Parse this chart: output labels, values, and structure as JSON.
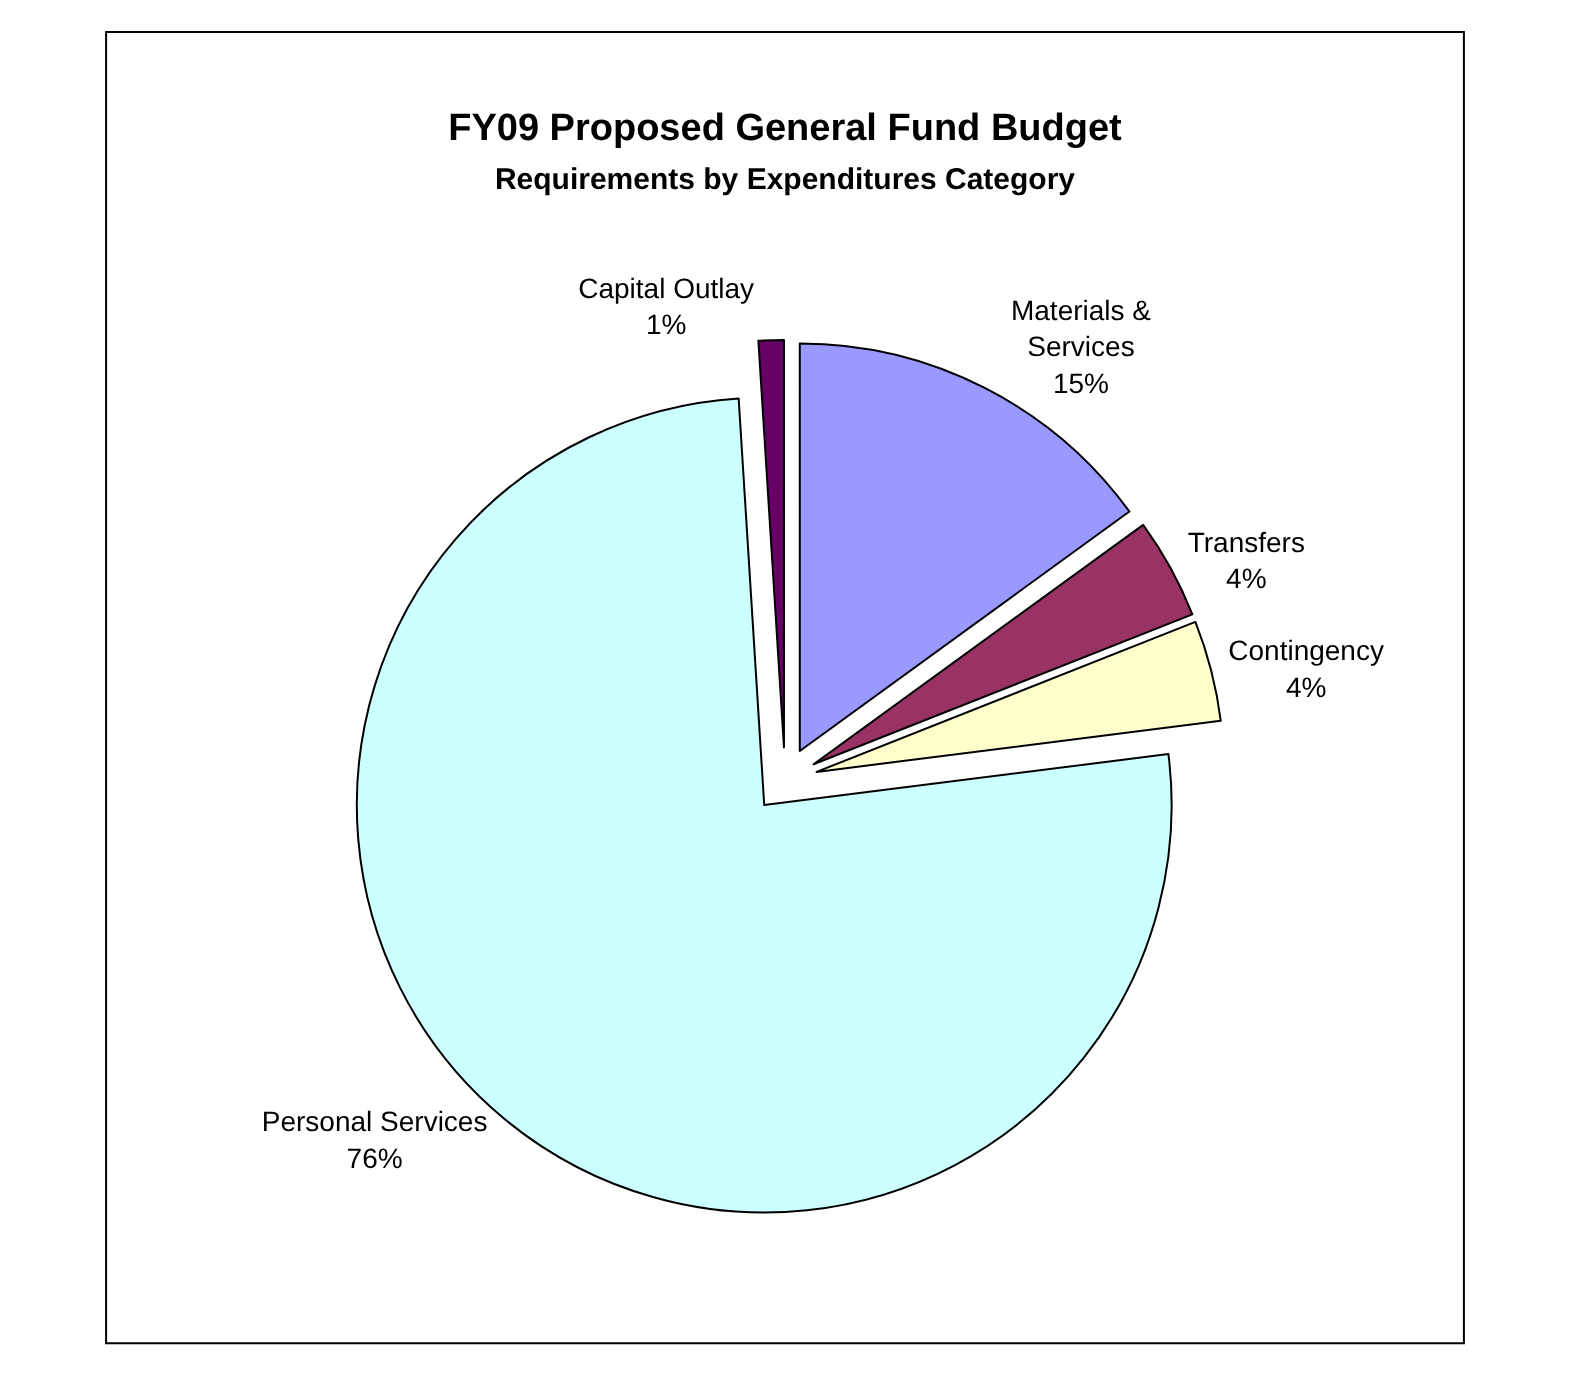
{
  "chart_data": {
    "type": "pie",
    "title": "FY09 Proposed General Fund Budget",
    "subtitle": "Requirements by Expenditures Category",
    "categories": [
      "Materials & Services",
      "Transfers",
      "Contingency",
      "Personal Services",
      "Capital Outlay"
    ],
    "values": [
      15,
      4,
      4,
      76,
      1
    ],
    "value_labels": [
      "15%",
      "4%",
      "4%",
      "76%",
      "1%"
    ],
    "colors": [
      "#9999ff",
      "#993366",
      "#ffffcc",
      "#ccffff",
      "#660066"
    ],
    "legend": false
  }
}
